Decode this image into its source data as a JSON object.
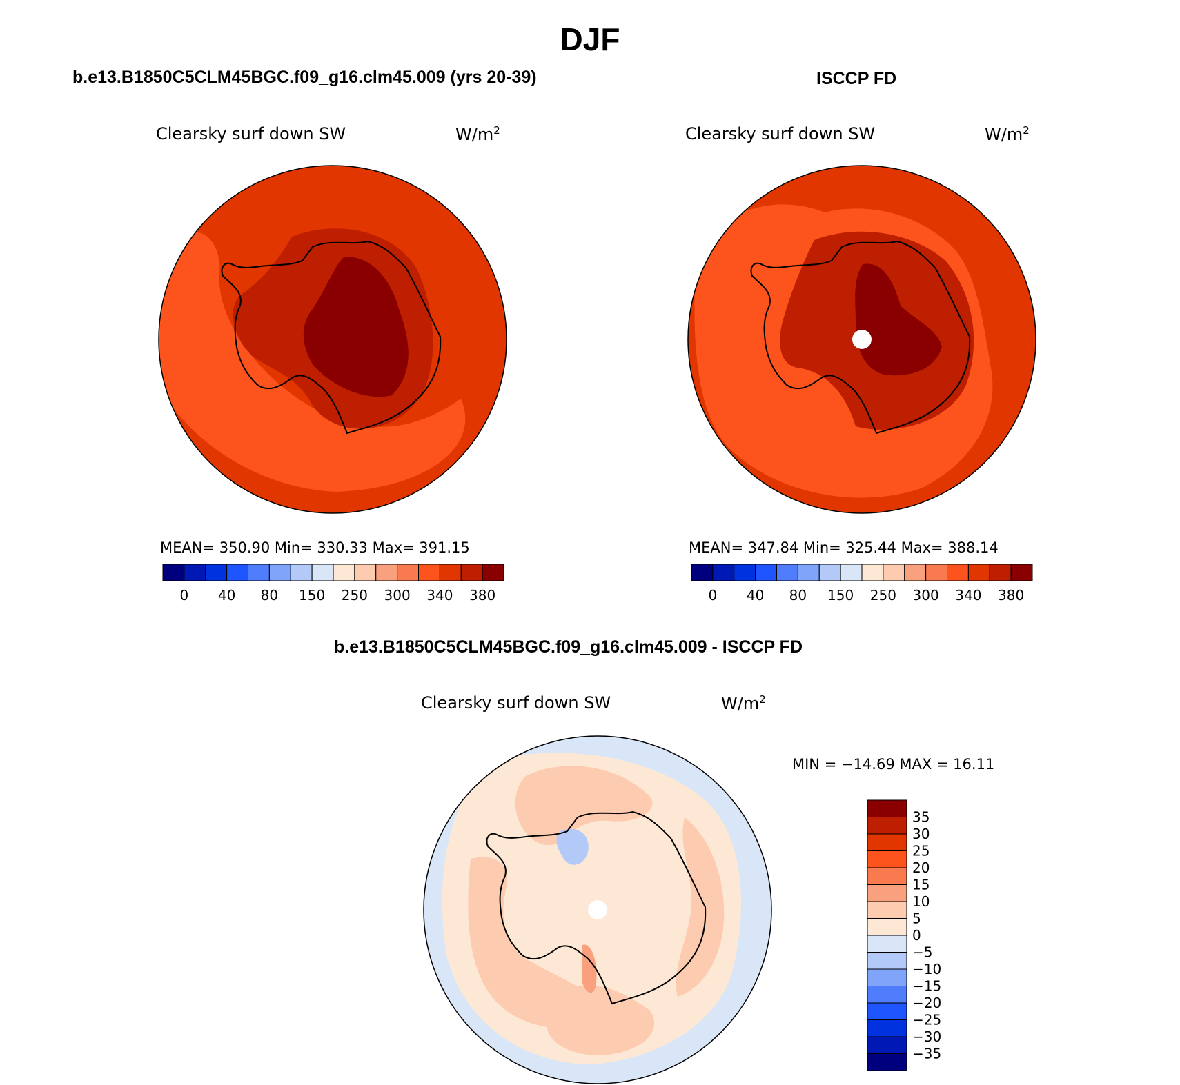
{
  "title": "DJF",
  "palette": [
    "#00007f",
    "#0019b5",
    "#0032e0",
    "#1f55ff",
    "#4f7dfc",
    "#7fa4fa",
    "#b3c9f8",
    "#d8e6f7",
    "#fde8d6",
    "#fccbb0",
    "#f9a07e",
    "#f97a4e",
    "#fc541c",
    "#e23600",
    "#be1f00",
    "#8a0000"
  ],
  "abs_colorbar_labels": [
    "0",
    "40",
    "80",
    "150",
    "250",
    "300",
    "340",
    "380"
  ],
  "diff_colorbar_labels": [
    "35",
    "30",
    "25",
    "20",
    "15",
    "10",
    "5",
    "0",
    "−5",
    "−10",
    "−15",
    "−20",
    "−25",
    "−30",
    "−35"
  ],
  "panels": {
    "model": {
      "title": "b.e13.B1850C5CLM45BGC.f09_g16.clm45.009 (yrs 20-39)",
      "variable": "Clearsky surf down SW",
      "units": "W/m",
      "units_exp": "2",
      "stats": "MEAN= 350.90   Min= 330.33   Max= 391.15"
    },
    "obs": {
      "title": "ISCCP FD",
      "variable": "Clearsky surf down SW",
      "units": "W/m",
      "units_exp": "2",
      "stats": "MEAN= 347.84   Min= 325.44   Max= 388.14"
    },
    "diff": {
      "title": "b.e13.B1850C5CLM45BGC.f09_g16.clm45.009 - ISCCP FD",
      "variable": "Clearsky surf down SW",
      "units": "W/m",
      "units_exp": "2",
      "stats": "MIN = −14.69 MAX =   16.11"
    }
  }
}
